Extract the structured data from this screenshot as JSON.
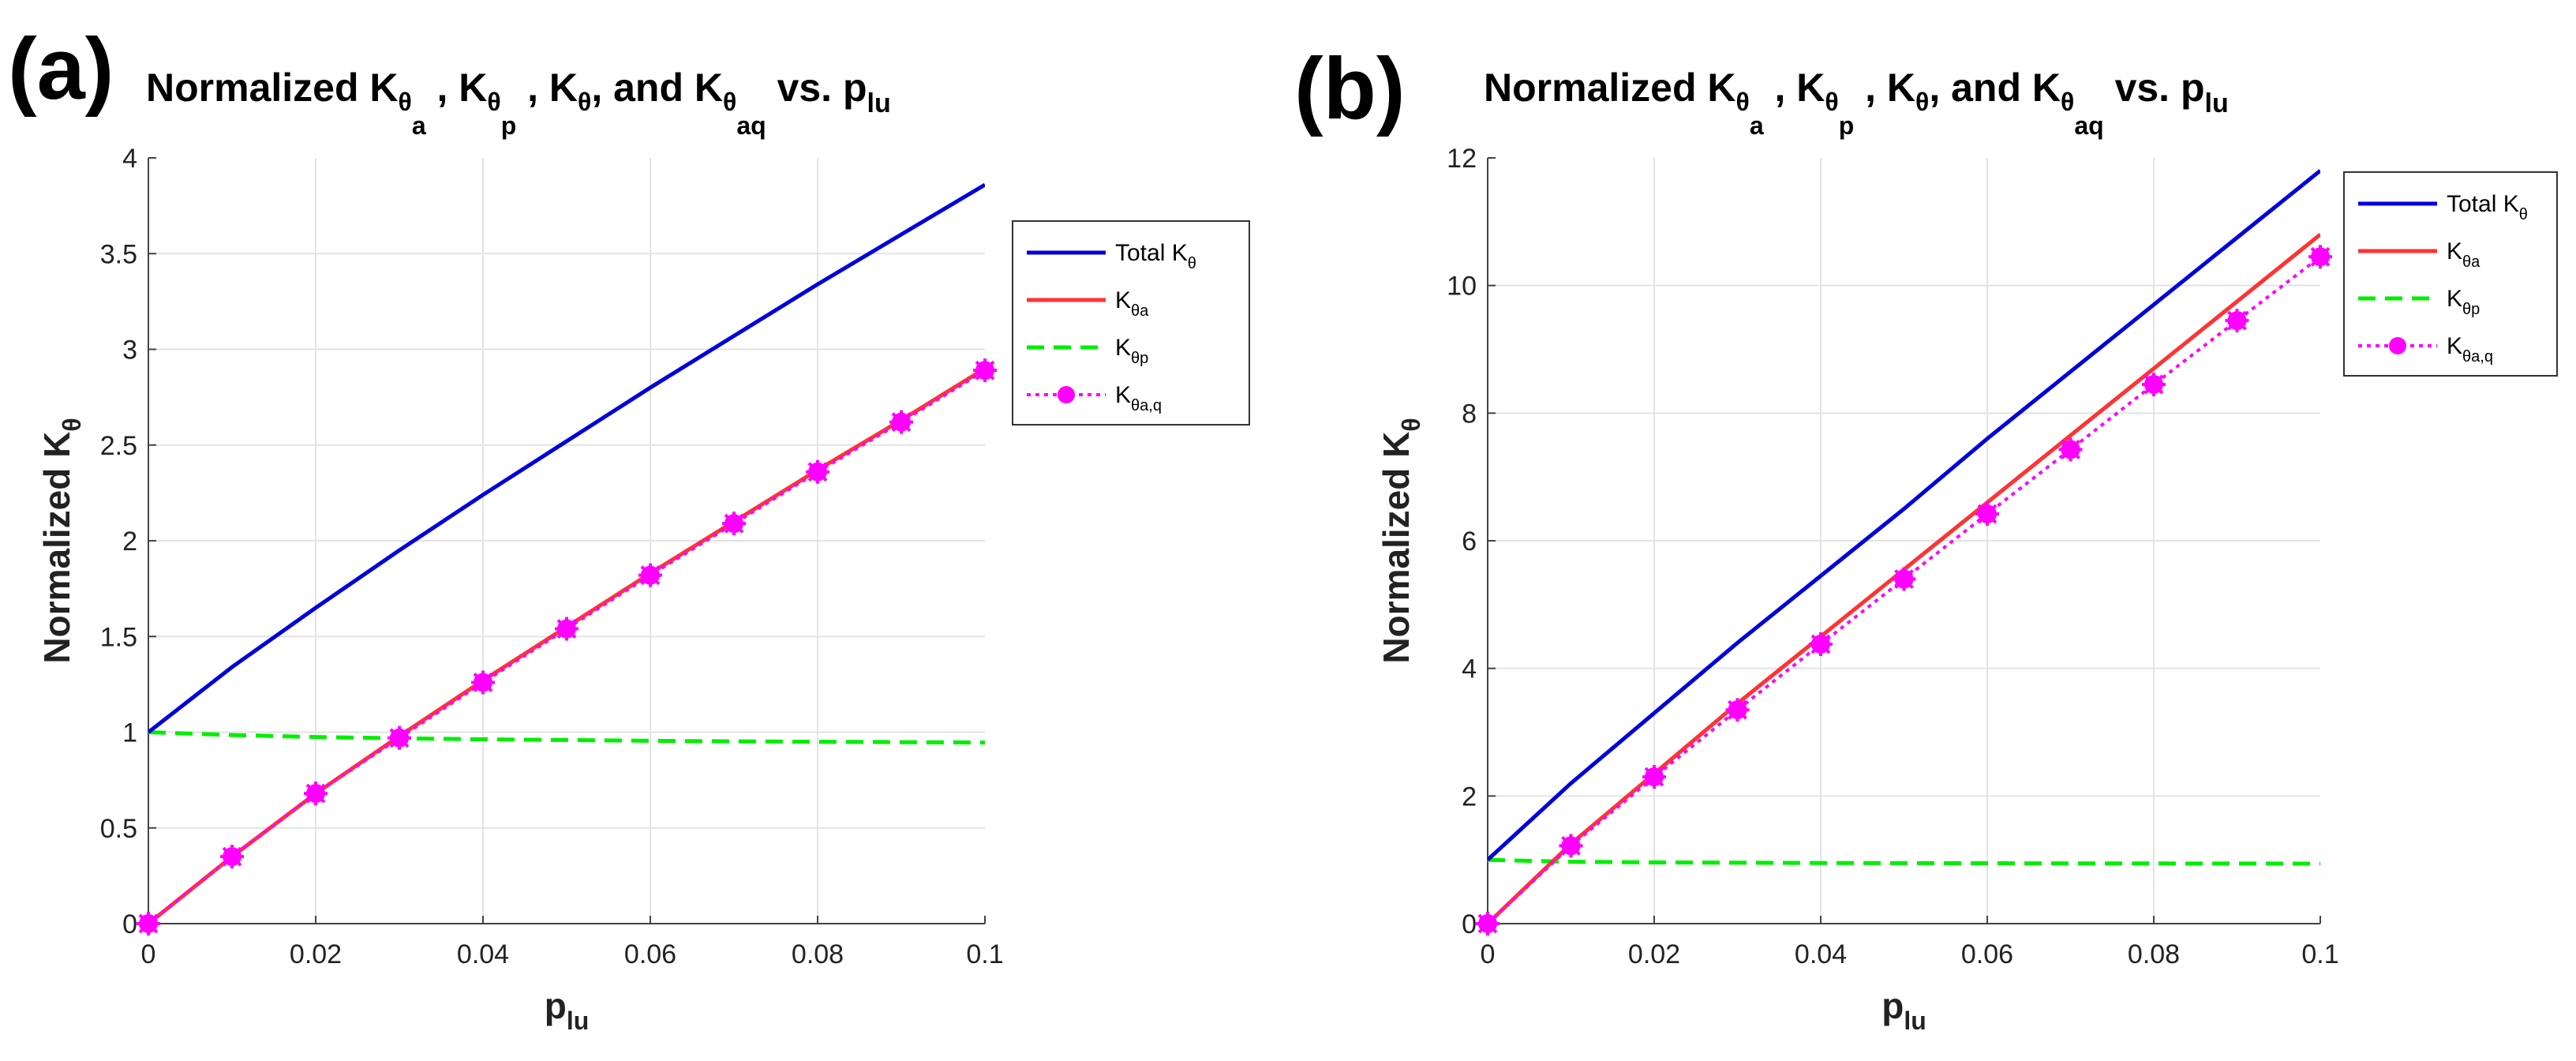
{
  "panels": [
    {
      "label": "(a)",
      "title": {
        "prefix": "Normalized K",
        "theta": "θ",
        "sub_a": "a",
        "sub_p": "p",
        "sub_aq": "aq",
        "sep1": " , K",
        "sep2": " , K",
        "sep3": ", and K",
        "suffix": " vs. p",
        "suffix_sub": "lu"
      },
      "chart_data": {
        "type": "line",
        "xlabel": "p",
        "xlabel_sub": "lu",
        "ylabel": "Normalized K",
        "ylabel_sub": "θ",
        "xlim": [
          0,
          0.1
        ],
        "ylim": [
          0,
          4
        ],
        "xticks": [
          0,
          0.02,
          0.04,
          0.06,
          0.08,
          0.1
        ],
        "xtick_labels": [
          "0",
          "0.02",
          "0.04",
          "0.06",
          "0.08",
          "0.1"
        ],
        "yticks": [
          0,
          0.5,
          1,
          1.5,
          2,
          2.5,
          3,
          3.5,
          4
        ],
        "ytick_labels": [
          "0",
          "0.5",
          "1",
          "1.5",
          "2",
          "2.5",
          "3",
          "3.5",
          "4"
        ],
        "grid": true,
        "legend_position": "top-right",
        "series": [
          {
            "name": "Total K",
            "sub": "θ",
            "style": "solid",
            "color": "#0000dd",
            "x": [
              0,
              0.01,
              0.02,
              0.03,
              0.04,
              0.05,
              0.06,
              0.07,
              0.08,
              0.09,
              0.1
            ],
            "y": [
              1.0,
              1.34,
              1.65,
              1.95,
              2.24,
              2.52,
              2.8,
              3.07,
              3.34,
              3.6,
              3.86
            ]
          },
          {
            "name": "K",
            "sub": "θa",
            "style": "solid",
            "color": "#ff3333",
            "x": [
              0,
              0.01,
              0.02,
              0.03,
              0.04,
              0.05,
              0.06,
              0.07,
              0.08,
              0.09,
              0.1
            ],
            "y": [
              0,
              0.35,
              0.68,
              0.98,
              1.27,
              1.55,
              1.83,
              2.1,
              2.37,
              2.63,
              2.9
            ]
          },
          {
            "name": "K",
            "sub": "θp",
            "style": "dashed",
            "color": "#00ee00",
            "x": [
              0,
              0.01,
              0.02,
              0.03,
              0.04,
              0.05,
              0.06,
              0.07,
              0.08,
              0.09,
              0.1
            ],
            "y": [
              1.0,
              0.985,
              0.975,
              0.968,
              0.963,
              0.959,
              0.955,
              0.952,
              0.95,
              0.948,
              0.946
            ]
          },
          {
            "name": "K",
            "sub": "θa,q",
            "style": "dotted-marker",
            "color": "#ff00ff",
            "x": [
              0,
              0.01,
              0.02,
              0.03,
              0.04,
              0.05,
              0.06,
              0.07,
              0.08,
              0.09,
              0.1
            ],
            "y": [
              0,
              0.35,
              0.68,
              0.97,
              1.26,
              1.54,
              1.82,
              2.09,
              2.36,
              2.62,
              2.89
            ]
          }
        ]
      }
    },
    {
      "label": "(b)",
      "title": {
        "prefix": "Normalized K",
        "theta": "θ",
        "sub_a": "a",
        "sub_p": "p",
        "sub_aq": "aq",
        "sep1": " , K",
        "sep2": " , K",
        "sep3": ", and K",
        "suffix": " vs. p",
        "suffix_sub": "lu"
      },
      "chart_data": {
        "type": "line",
        "xlabel": "p",
        "xlabel_sub": "lu",
        "ylabel": "Normalized K",
        "ylabel_sub": "θ",
        "xlim": [
          0,
          0.1
        ],
        "ylim": [
          0,
          12
        ],
        "xticks": [
          0,
          0.02,
          0.04,
          0.06,
          0.08,
          0.1
        ],
        "xtick_labels": [
          "0",
          "0.02",
          "0.04",
          "0.06",
          "0.08",
          "0.1"
        ],
        "yticks": [
          0,
          2,
          4,
          6,
          8,
          10,
          12
        ],
        "ytick_labels": [
          "0",
          "2",
          "4",
          "6",
          "8",
          "10",
          "12"
        ],
        "grid": true,
        "legend_position": "top-right",
        "series": [
          {
            "name": "Total K",
            "sub": "θ",
            "style": "solid",
            "color": "#0000dd",
            "x": [
              0,
              0.01,
              0.02,
              0.03,
              0.04,
              0.05,
              0.06,
              0.07,
              0.08,
              0.09,
              0.1
            ],
            "y": [
              1.0,
              2.2,
              3.3,
              4.4,
              5.45,
              6.5,
              7.6,
              8.65,
              9.7,
              10.75,
              11.8
            ]
          },
          {
            "name": "K",
            "sub": "θa",
            "style": "solid",
            "color": "#ff3333",
            "x": [
              0,
              0.01,
              0.02,
              0.03,
              0.04,
              0.05,
              0.06,
              0.07,
              0.08,
              0.09,
              0.1
            ],
            "y": [
              0,
              1.25,
              2.35,
              3.45,
              4.5,
              5.55,
              6.6,
              7.65,
              8.7,
              9.75,
              10.8
            ]
          },
          {
            "name": "K",
            "sub": "θp",
            "style": "dashed",
            "color": "#00ee00",
            "x": [
              0,
              0.01,
              0.02,
              0.03,
              0.04,
              0.05,
              0.06,
              0.07,
              0.08,
              0.09,
              0.1
            ],
            "y": [
              1.0,
              0.97,
              0.96,
              0.955,
              0.95,
              0.948,
              0.946,
              0.944,
              0.943,
              0.942,
              0.94
            ]
          },
          {
            "name": "K",
            "sub": "θa,q",
            "style": "dotted-marker",
            "color": "#ff00ff",
            "x": [
              0,
              0.01,
              0.02,
              0.03,
              0.04,
              0.05,
              0.06,
              0.07,
              0.08,
              0.09,
              0.1
            ],
            "y": [
              0,
              1.22,
              2.3,
              3.35,
              4.38,
              5.4,
              6.42,
              7.43,
              8.45,
              9.45,
              10.45
            ]
          }
        ]
      }
    }
  ]
}
